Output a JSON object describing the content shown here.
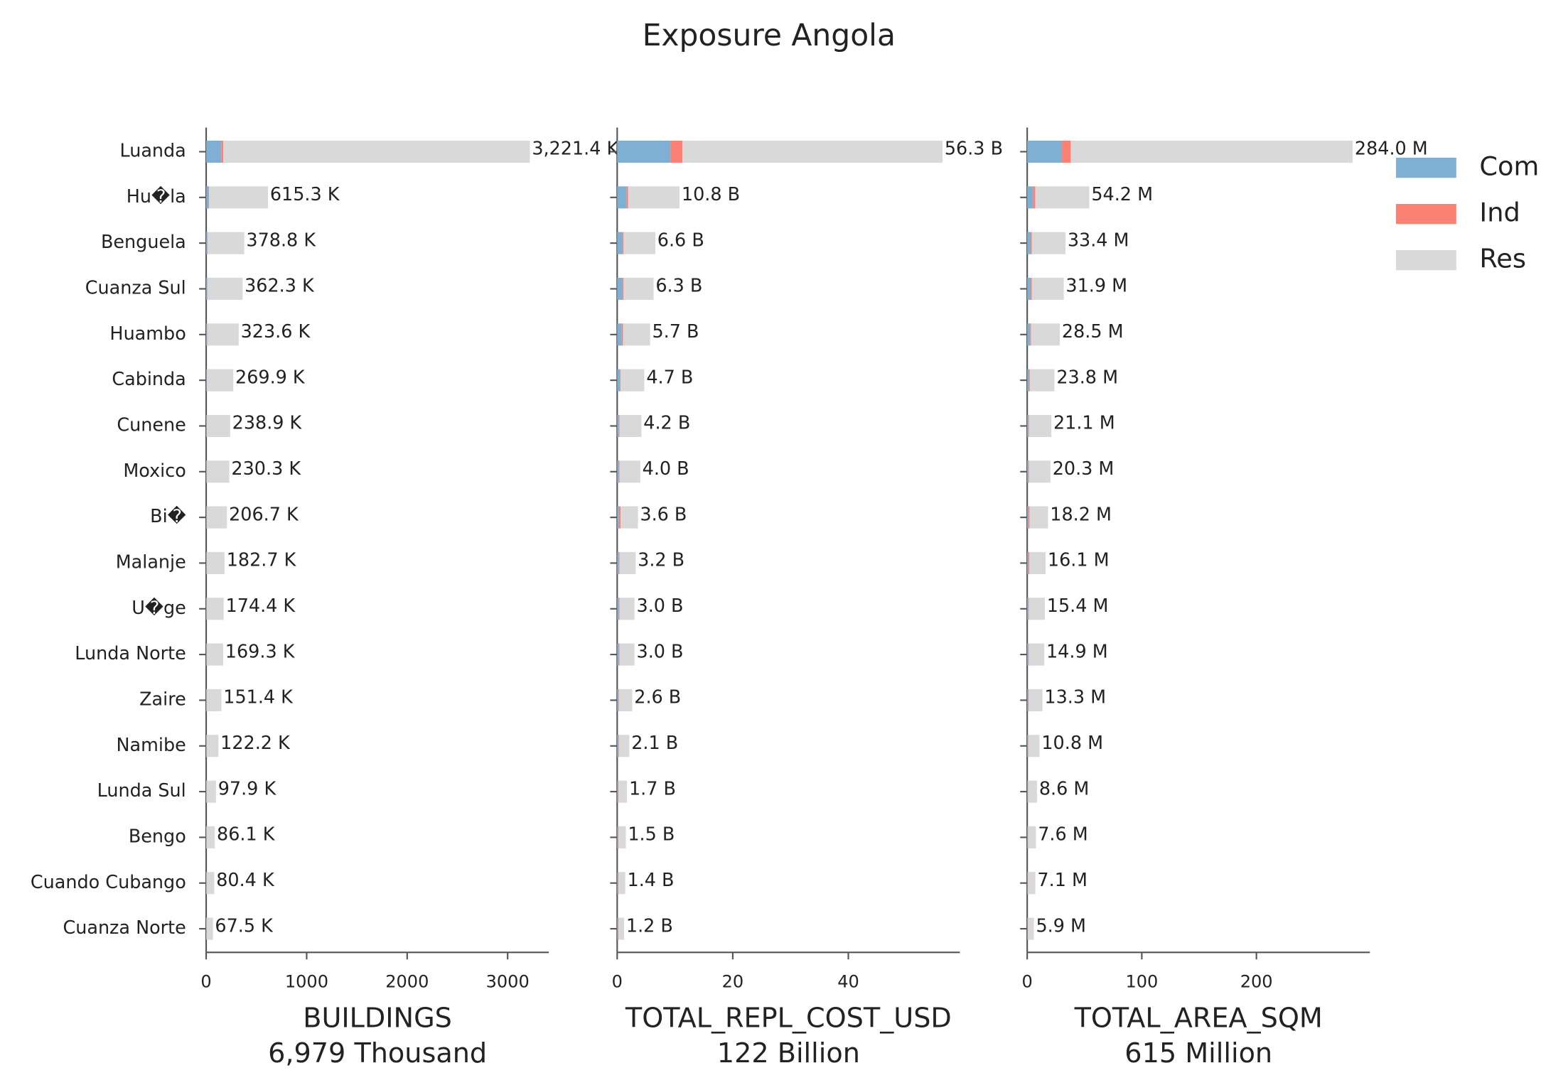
{
  "title": "Exposure Angola",
  "chart_data": [
    {
      "type": "stacked-barh",
      "xlabel": "BUILDINGS",
      "subtitle": "6,979 Thousand",
      "categories": [
        "Luanda",
        "Hu�la",
        "Benguela",
        "Cuanza Sul",
        "Huambo",
        "Cabinda",
        "Cunene",
        "Moxico",
        "Bi�",
        "Malanje",
        "U�ge",
        "Lunda Norte",
        "Zaire",
        "Namibe",
        "Lunda Sul",
        "Bengo",
        "Cuando Cubango",
        "Cuanza Norte"
      ],
      "series": [
        {
          "name": "Com",
          "color": "#7fb0d4",
          "values": [
            150,
            25,
            12,
            10,
            8,
            5,
            3,
            3,
            3,
            3,
            3,
            3,
            2,
            2,
            1,
            1,
            1,
            1
          ]
        },
        {
          "name": "Ind",
          "color": "#f98274",
          "values": [
            20,
            3,
            2,
            2,
            2,
            1,
            1,
            1,
            2,
            1,
            1,
            1,
            1,
            1,
            1,
            1,
            1,
            1
          ]
        },
        {
          "name": "Res",
          "color": "#d9d9d9",
          "values": [
            3051.4,
            587.3,
            364.8,
            350.3,
            313.6,
            263.9,
            234.9,
            226.3,
            201.7,
            178.7,
            170.4,
            165.3,
            148.4,
            119.2,
            95.9,
            84.1,
            78.4,
            65.5
          ]
        }
      ],
      "totals": {
        "values": [
          3221.4,
          615.3,
          378.8,
          362.3,
          323.6,
          269.9,
          238.9,
          230.3,
          206.7,
          182.7,
          174.4,
          169.3,
          151.4,
          122.2,
          97.9,
          86.1,
          80.4,
          67.5
        ],
        "value_labels": [
          "3,221.4 K",
          "615.3 K",
          "378.8 K",
          "362.3 K",
          "323.6 K",
          "269.9 K",
          "238.9 K",
          "230.3 K",
          "206.7 K",
          "182.7 K",
          "174.4 K",
          "169.3 K",
          "151.4 K",
          "122.2 K",
          "97.9 K",
          "86.1 K",
          "80.4 K",
          "67.5 K"
        ]
      },
      "xlim": [
        0,
        3410
      ],
      "xticks": [
        0,
        1000,
        2000,
        3000
      ]
    },
    {
      "type": "stacked-barh",
      "xlabel": "TOTAL_REPL_COST_USD",
      "subtitle": "122 Billion",
      "series": [
        {
          "values": [
            9.2,
            1.6,
            0.9,
            0.9,
            0.8,
            0.5,
            0.3,
            0.3,
            0.3,
            0.3,
            0.3,
            0.3,
            0.2,
            0.2,
            0.1,
            0.1,
            0.1,
            0.1
          ]
        },
        {
          "values": [
            2.1,
            0.3,
            0.2,
            0.2,
            0.2,
            0.1,
            0.1,
            0.1,
            0.3,
            0.1,
            0.1,
            0.1,
            0.1,
            0.1,
            0.1,
            0.1,
            0.1,
            0.1
          ]
        },
        {
          "values": [
            45.0,
            8.9,
            5.5,
            5.2,
            4.7,
            4.1,
            3.8,
            3.6,
            3.0,
            2.8,
            2.6,
            2.6,
            2.3,
            1.8,
            1.5,
            1.3,
            1.2,
            1.0
          ]
        }
      ],
      "totals": {
        "values": [
          56.3,
          10.8,
          6.6,
          6.3,
          5.7,
          4.7,
          4.2,
          4.0,
          3.6,
          3.2,
          3.0,
          3.0,
          2.6,
          2.1,
          1.7,
          1.5,
          1.4,
          1.2
        ],
        "value_labels": [
          "56.3 B",
          "10.8 B",
          "6.6 B",
          "6.3 B",
          "5.7 B",
          "4.7 B",
          "4.2 B",
          "4.0 B",
          "3.6 B",
          "3.2 B",
          "3.0 B",
          "3.0 B",
          "2.6 B",
          "2.1 B",
          "1.7 B",
          "1.5 B",
          "1.4 B",
          "1.2 B"
        ]
      },
      "xlim": [
        0,
        59.3
      ],
      "xticks": [
        0,
        20,
        40
      ]
    },
    {
      "type": "stacked-barh",
      "xlabel": "TOTAL_AREA_SQM",
      "subtitle": "615 Million",
      "series": [
        {
          "values": [
            30,
            5,
            3,
            3,
            2.5,
            1.5,
            1,
            1,
            1,
            1,
            1,
            1,
            0.8,
            0.6,
            0.4,
            0.4,
            0.3,
            0.3
          ]
        },
        {
          "values": [
            8,
            2,
            1,
            1,
            0.8,
            0.8,
            0.5,
            0.5,
            1,
            0.8,
            0.4,
            0.4,
            0.5,
            0.4,
            0.3,
            0.3,
            0.3,
            0.3
          ]
        },
        {
          "values": [
            246,
            47.2,
            29.4,
            27.9,
            25.2,
            21.5,
            19.6,
            18.8,
            16.2,
            14.3,
            14.0,
            13.5,
            12.0,
            9.8,
            7.9,
            6.9,
            6.5,
            5.3
          ]
        }
      ],
      "totals": {
        "values": [
          284.0,
          54.2,
          33.4,
          31.9,
          28.5,
          23.8,
          21.1,
          20.3,
          18.2,
          16.1,
          15.4,
          14.9,
          13.3,
          10.8,
          8.6,
          7.6,
          7.1,
          5.9
        ],
        "value_labels": [
          "284.0 M",
          "54.2 M",
          "33.4 M",
          "31.9 M",
          "28.5 M",
          "23.8 M",
          "21.1 M",
          "20.3 M",
          "18.2 M",
          "16.1 M",
          "15.4 M",
          "14.9 M",
          "13.3 M",
          "10.8 M",
          "8.6 M",
          "7.6 M",
          "7.1 M",
          "5.9 M"
        ]
      },
      "xlim": [
        0,
        299
      ],
      "xticks": [
        0,
        100,
        200
      ]
    }
  ]
}
